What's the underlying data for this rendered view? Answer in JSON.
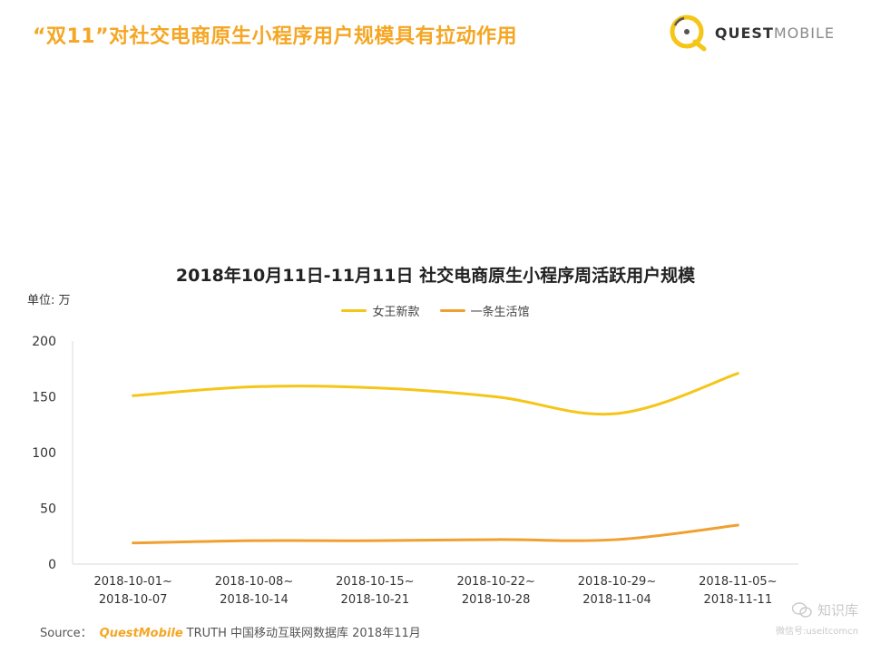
{
  "header": {
    "headline": "“双11”对社交电商原生小程序用户规模具有拉动作用",
    "logo": {
      "bold": "QUEST",
      "light": "MOBILE",
      "icon": "questmobile-logo-icon"
    }
  },
  "colors": {
    "headline": "#f5a623",
    "series_1": "#f5c518",
    "series_2": "#f0a030",
    "axis": "#d9d9d9"
  },
  "unit_label": "单位: 万",
  "chart_data": {
    "type": "line",
    "title": "2018年10月11日-11月11日 社交电商原生小程序周活跃用户规模",
    "xlabel": "",
    "ylabel": "单位: 万",
    "ylim": [
      0,
      200
    ],
    "yticks": [
      0,
      50,
      100,
      150,
      200
    ],
    "grid": false,
    "legend_position": "top",
    "categories": [
      [
        "2018-10-01~",
        "2018-10-07"
      ],
      [
        "2018-10-08~",
        "2018-10-14"
      ],
      [
        "2018-10-15~",
        "2018-10-21"
      ],
      [
        "2018-10-22~",
        "2018-10-28"
      ],
      [
        "2018-10-29~",
        "2018-11-04"
      ],
      [
        "2018-11-05~",
        "2018-11-11"
      ]
    ],
    "series": [
      {
        "name": "女王新款",
        "values": [
          151,
          159,
          158,
          150,
          135,
          171
        ]
      },
      {
        "name": "一条生活馆",
        "values": [
          19,
          21,
          21,
          22,
          22,
          35
        ]
      }
    ]
  },
  "source": {
    "prefix": "Source：",
    "brand": "QuestMobile",
    "text": "TRUTH 中国移动互联网数据库 2018年11月"
  },
  "watermark": {
    "main": "知识库",
    "sub": "微信号:useitcomcn",
    "icon": "wechat-icon"
  }
}
